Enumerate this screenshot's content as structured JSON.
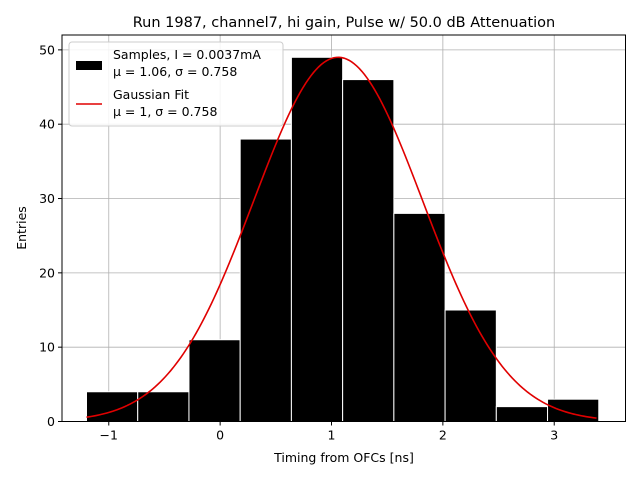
{
  "chart_data": {
    "type": "bar",
    "title": "Run 1987, channel7, hi gain, Pulse w/ 50.0 dB Attenuation",
    "xlabel": "Timing from OFCs [ns]",
    "ylabel": "Entries",
    "xlim": [
      -1.42,
      3.64
    ],
    "ylim": [
      0,
      52
    ],
    "xticks": [
      -1,
      0,
      1,
      2,
      3
    ],
    "xtick_labels": [
      "−1",
      "0",
      "1",
      "2",
      "3"
    ],
    "yticks": [
      0,
      10,
      20,
      30,
      40,
      50
    ],
    "ytick_labels": [
      "0",
      "10",
      "20",
      "30",
      "40",
      "50"
    ],
    "grid": true,
    "legend_position": "top-left",
    "bins": [
      {
        "x0": -1.2,
        "x1": -0.74,
        "value": 4
      },
      {
        "x0": -0.74,
        "x1": -0.28,
        "value": 4
      },
      {
        "x0": -0.28,
        "x1": 0.18,
        "value": 11
      },
      {
        "x0": 0.18,
        "x1": 0.64,
        "value": 38
      },
      {
        "x0": 0.64,
        "x1": 1.1,
        "value": 49
      },
      {
        "x0": 1.1,
        "x1": 1.56,
        "value": 46
      },
      {
        "x0": 1.56,
        "x1": 2.02,
        "value": 28
      },
      {
        "x0": 2.02,
        "x1": 2.48,
        "value": 15
      },
      {
        "x0": 2.48,
        "x1": 2.94,
        "value": 2
      },
      {
        "x0": 2.94,
        "x1": 3.4,
        "value": 3
      }
    ],
    "fit": {
      "mu": 1.06,
      "sigma": 0.758,
      "amplitude": 49,
      "x_range": [
        -1.2,
        3.38
      ]
    },
    "legend": {
      "samples_line1": "Samples, I = 0.0037mA",
      "samples_line2": "μ = 1.06, σ = 0.758",
      "fit_line1": "Gaussian Fit",
      "fit_line2": "μ = 1, σ = 0.758"
    },
    "colors": {
      "bars": "#000000",
      "bar_edge": "#ffffff",
      "fit": "#e00000",
      "grid": "#b0b0b0"
    }
  }
}
